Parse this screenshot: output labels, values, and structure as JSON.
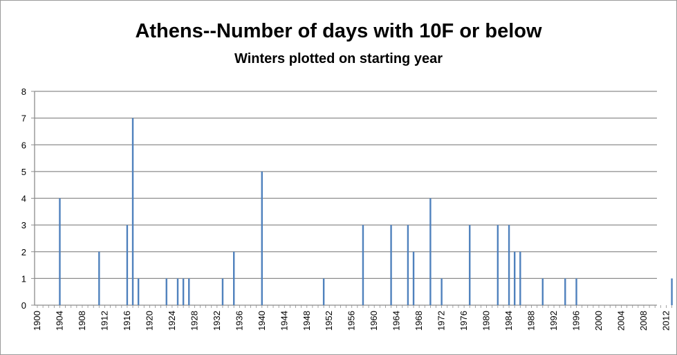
{
  "chart_data": {
    "type": "bar",
    "title": "Athens--Number of days with 10F or below",
    "subtitle": "Winters plotted on starting year",
    "xlabel": "",
    "ylabel": "",
    "xlim": [
      1900,
      2013
    ],
    "ylim": [
      0,
      8
    ],
    "yticks": [
      0,
      1,
      2,
      3,
      4,
      5,
      6,
      7,
      8
    ],
    "xticks": [
      1900,
      1904,
      1908,
      1912,
      1916,
      1920,
      1924,
      1928,
      1932,
      1936,
      1940,
      1944,
      1948,
      1952,
      1956,
      1960,
      1964,
      1968,
      1972,
      1976,
      1980,
      1984,
      1988,
      1992,
      1996,
      2000,
      2004,
      2008,
      2012
    ],
    "grid": true,
    "legend": "none",
    "bar_color": "#4f81bd",
    "x": [
      1904,
      1911,
      1916,
      1917,
      1918,
      1923,
      1925,
      1926,
      1927,
      1933,
      1935,
      1940,
      1951,
      1958,
      1963,
      1966,
      1967,
      1970,
      1972,
      1977,
      1982,
      1984,
      1985,
      1986,
      1990,
      1994,
      1996,
      2013
    ],
    "values": [
      4,
      2,
      3,
      7,
      1,
      1,
      1,
      1,
      1,
      1,
      2,
      5,
      1,
      3,
      3,
      3,
      2,
      4,
      1,
      3,
      3,
      3,
      2,
      2,
      1,
      1,
      1,
      1
    ]
  }
}
